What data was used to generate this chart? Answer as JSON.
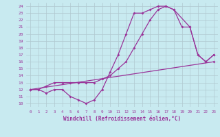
{
  "xlabel": "Windchill (Refroidissement éolien,°C)",
  "background_color": "#c8eaf0",
  "grid_color": "#b0c8d0",
  "line_color": "#993399",
  "xlim": [
    -0.5,
    23.5
  ],
  "ylim": [
    9.5,
    24.5
  ],
  "xticks": [
    0,
    1,
    2,
    3,
    4,
    5,
    6,
    7,
    8,
    9,
    10,
    11,
    12,
    13,
    14,
    15,
    16,
    17,
    18,
    19,
    20,
    21,
    22,
    23
  ],
  "yticks": [
    10,
    11,
    12,
    13,
    14,
    15,
    16,
    17,
    18,
    19,
    20,
    21,
    22,
    23,
    24
  ],
  "series1": [
    [
      0,
      12
    ],
    [
      1,
      12
    ],
    [
      2,
      11.5
    ],
    [
      3,
      12
    ],
    [
      4,
      12
    ],
    [
      5,
      11
    ],
    [
      6,
      10.5
    ],
    [
      7,
      10
    ],
    [
      8,
      10.5
    ],
    [
      9,
      12
    ],
    [
      10,
      14.5
    ],
    [
      11,
      17
    ],
    [
      12,
      20
    ],
    [
      13,
      23
    ],
    [
      14,
      23
    ],
    [
      15,
      23.5
    ],
    [
      16,
      24
    ],
    [
      17,
      24
    ],
    [
      18,
      23.5
    ],
    [
      19,
      21
    ],
    [
      20,
      21
    ],
    [
      21,
      17
    ],
    [
      22,
      16
    ],
    [
      23,
      17
    ]
  ],
  "series2": [
    [
      0,
      12
    ],
    [
      1,
      12
    ],
    [
      2,
      12.5
    ],
    [
      3,
      13
    ],
    [
      4,
      13
    ],
    [
      5,
      13
    ],
    [
      6,
      13
    ],
    [
      7,
      13
    ],
    [
      8,
      13
    ],
    [
      9,
      13.5
    ],
    [
      10,
      14
    ],
    [
      11,
      15
    ],
    [
      12,
      16
    ],
    [
      13,
      18
    ],
    [
      14,
      20
    ],
    [
      15,
      22
    ],
    [
      16,
      23.5
    ],
    [
      17,
      24
    ],
    [
      18,
      23.5
    ],
    [
      20,
      21
    ],
    [
      21,
      17
    ],
    [
      22,
      16
    ],
    [
      23,
      17
    ]
  ],
  "series3": [
    [
      0,
      12
    ],
    [
      23,
      16
    ]
  ]
}
